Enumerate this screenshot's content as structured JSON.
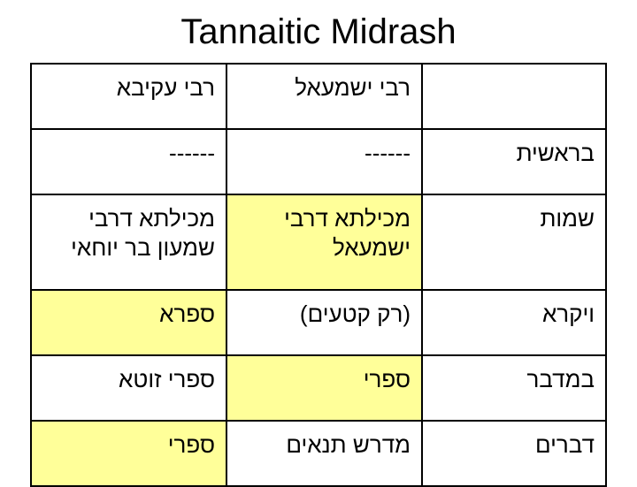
{
  "title": "Tannaitic Midrash",
  "colors": {
    "highlight": "#ffff99",
    "border": "#000000",
    "background": "#ffffff",
    "text": "#000000"
  },
  "table": {
    "columns": [
      {
        "key": "akiva",
        "header": "רבי עקיבא",
        "width_pct": 34
      },
      {
        "key": "ishmael",
        "header": "רבי ישמעאל",
        "width_pct": 34
      },
      {
        "key": "book",
        "header": "",
        "width_pct": 32
      }
    ],
    "rows": [
      {
        "book": {
          "text": "בראשית",
          "highlight": false
        },
        "ishmael": {
          "text": "------",
          "highlight": false
        },
        "akiva": {
          "text": "------",
          "highlight": false
        }
      },
      {
        "tall": true,
        "book": {
          "text": "שמות",
          "highlight": false
        },
        "ishmael": {
          "text": "מכילתא דרבי ישמעאל",
          "highlight": true
        },
        "akiva": {
          "text": "מכילתא דרבי שמעון בר יוחאי",
          "highlight": false
        }
      },
      {
        "book": {
          "text": "ויקרא",
          "highlight": false
        },
        "ishmael": {
          "text": "(רק קטעים)",
          "highlight": false
        },
        "akiva": {
          "text": "ספרא",
          "highlight": true
        }
      },
      {
        "book": {
          "text": "במדבר",
          "highlight": false
        },
        "ishmael": {
          "text": "ספרי",
          "highlight": true
        },
        "akiva": {
          "text": "ספרי זוטא",
          "highlight": false
        }
      },
      {
        "book": {
          "text": "דברים",
          "highlight": false
        },
        "ishmael": {
          "text": "מדרש תנאים",
          "highlight": false
        },
        "akiva": {
          "text": "ספרי",
          "highlight": true
        }
      }
    ]
  }
}
